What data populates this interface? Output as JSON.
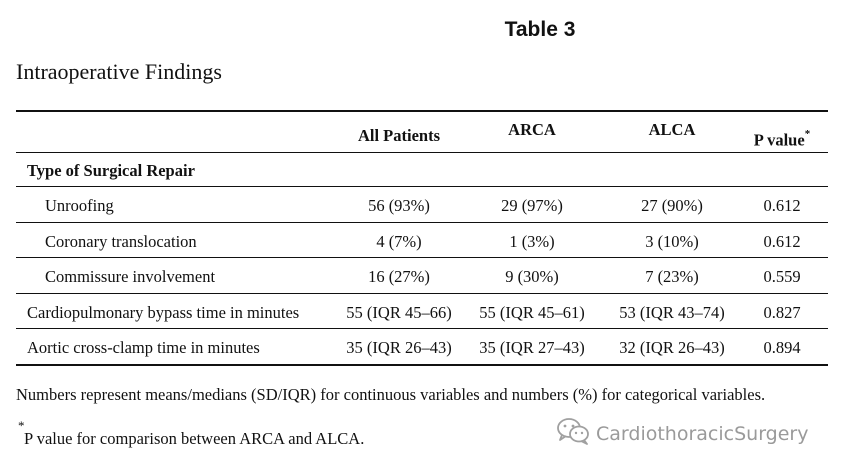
{
  "title": "Table 3",
  "caption": "Intraoperative Findings",
  "columns": [
    "All Patients",
    "ARCA",
    "ALCA",
    "P value"
  ],
  "header_footnote_mark": "*",
  "section_header": "Type of Surgical Repair",
  "rows": [
    {
      "label": "Unroofing",
      "all": "56 (93%)",
      "arca": "29 (97%)",
      "alca": "27 (90%)",
      "p": "0.612"
    },
    {
      "label": "Coronary translocation",
      "all": "4 (7%)",
      "arca": "1 (3%)",
      "alca": "3 (10%)",
      "p": "0.612"
    },
    {
      "label": "Commissure involvement",
      "all": "16 (27%)",
      "arca": "9 (30%)",
      "alca": "7 (23%)",
      "p": "0.559"
    },
    {
      "label": "Cardiopulmonary bypass time in minutes",
      "all": "55 (IQR 45–66)",
      "arca": "55 (IQR 45–61)",
      "alca": "53 (IQR 43–74)",
      "p": "0.827"
    },
    {
      "label": "Aortic cross-clamp time in minutes",
      "all": "35 (IQR 26–43)",
      "arca": "35 (IQR 27–43)",
      "alca": "32 (IQR 26–43)",
      "p": "0.894"
    }
  ],
  "footnotes": {
    "numbers_note": "Numbers represent means/medians (SD/IQR) for continuous variables and numbers (%) for categorical variables.",
    "star_mark": "*",
    "p_value_note": "P value for comparison between ARCA and ALCA."
  },
  "watermark": {
    "icon": "wechat-icon",
    "text": "CardiothoracicSurgery"
  }
}
